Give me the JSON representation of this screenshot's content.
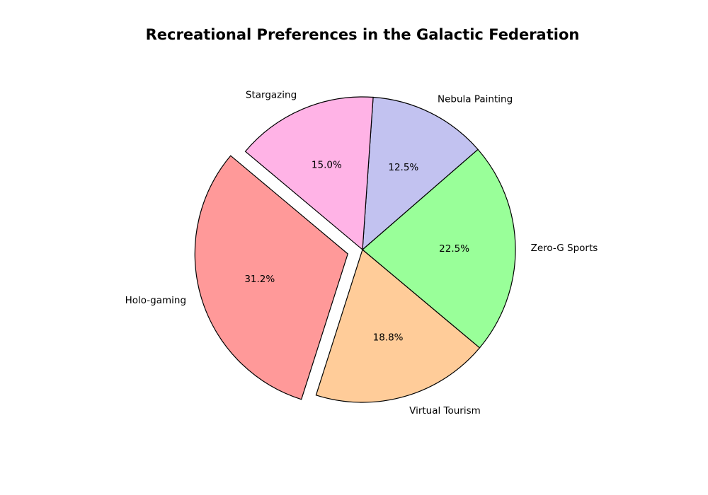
{
  "chart_data": {
    "type": "pie",
    "title": "Recreational Preferences in the Galactic Federation",
    "slices": [
      {
        "label": "Holo-gaming",
        "value": 31.2,
        "pct_label": "31.2%",
        "color": "#ff9999",
        "exploded": true
      },
      {
        "label": "Virtual Tourism",
        "value": 18.8,
        "pct_label": "18.8%",
        "color": "#ffcc99",
        "exploded": false
      },
      {
        "label": "Zero-G Sports",
        "value": 22.5,
        "pct_label": "22.5%",
        "color": "#99ff99",
        "exploded": false
      },
      {
        "label": "Nebula Painting",
        "value": 12.5,
        "pct_label": "12.5%",
        "color": "#c2c2f0",
        "exploded": false
      },
      {
        "label": "Stargazing",
        "value": 15.0,
        "pct_label": "15.0%",
        "color": "#ffb3e6",
        "exploded": false
      }
    ],
    "start_angle_deg": 140,
    "direction": "counterclockwise",
    "legend": "none"
  }
}
